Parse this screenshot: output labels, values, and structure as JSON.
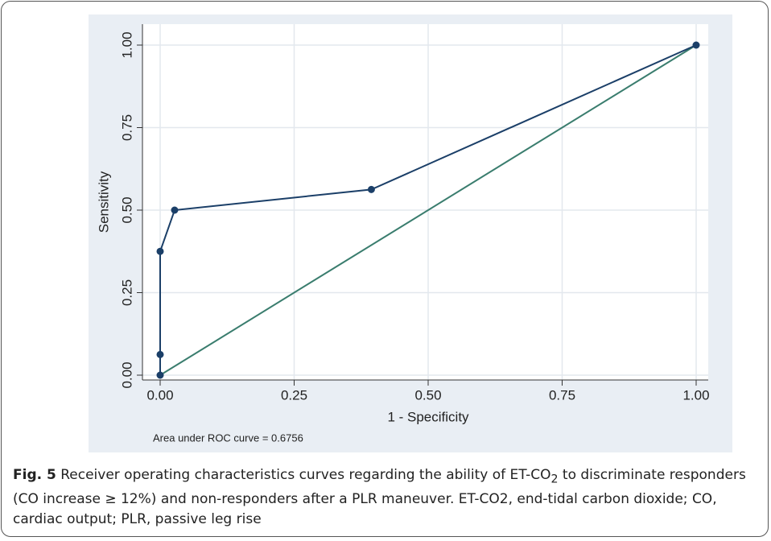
{
  "chart_data": {
    "type": "line",
    "xlabel": "1 - Specificity",
    "ylabel": "Sensitivity",
    "annotation": "Area under ROC curve = 0.6756",
    "xlim": [
      0,
      1
    ],
    "ylim": [
      0,
      1
    ],
    "xticks": [
      {
        "value": 0,
        "label": "0.00"
      },
      {
        "value": 0.25,
        "label": "0.25"
      },
      {
        "value": 0.5,
        "label": "0.50"
      },
      {
        "value": 0.75,
        "label": "0.75"
      },
      {
        "value": 1,
        "label": "1.00"
      }
    ],
    "yticks": [
      {
        "value": 0,
        "label": "0.00"
      },
      {
        "value": 0.25,
        "label": "0.25"
      },
      {
        "value": 0.5,
        "label": "0.50"
      },
      {
        "value": 0.75,
        "label": "0.75"
      },
      {
        "value": 1,
        "label": "1.00"
      }
    ],
    "grid": true,
    "series": [
      {
        "color": "#1b3f68",
        "markers": true,
        "x": [
          0,
          0,
          0,
          0.027,
          0.394,
          1
        ],
        "values": [
          0,
          0.0625,
          0.375,
          0.5,
          0.5625,
          1
        ]
      },
      {
        "color": "#3a7d6e",
        "markers": false,
        "x": [
          0,
          1
        ],
        "values": [
          0,
          1
        ]
      }
    ]
  },
  "caption": {
    "label": "Fig. 5",
    "text_before": " Receiver operating characteristics curves regarding the ability of ET-CO",
    "subscript": "2",
    "text_after": " to discriminate responders (CO increase ≥ 12%) and non-responders after a PLR maneuver. ET-CO2, end-tidal carbon dioxide; CO, cardiac output; PLR, passive leg rise"
  }
}
